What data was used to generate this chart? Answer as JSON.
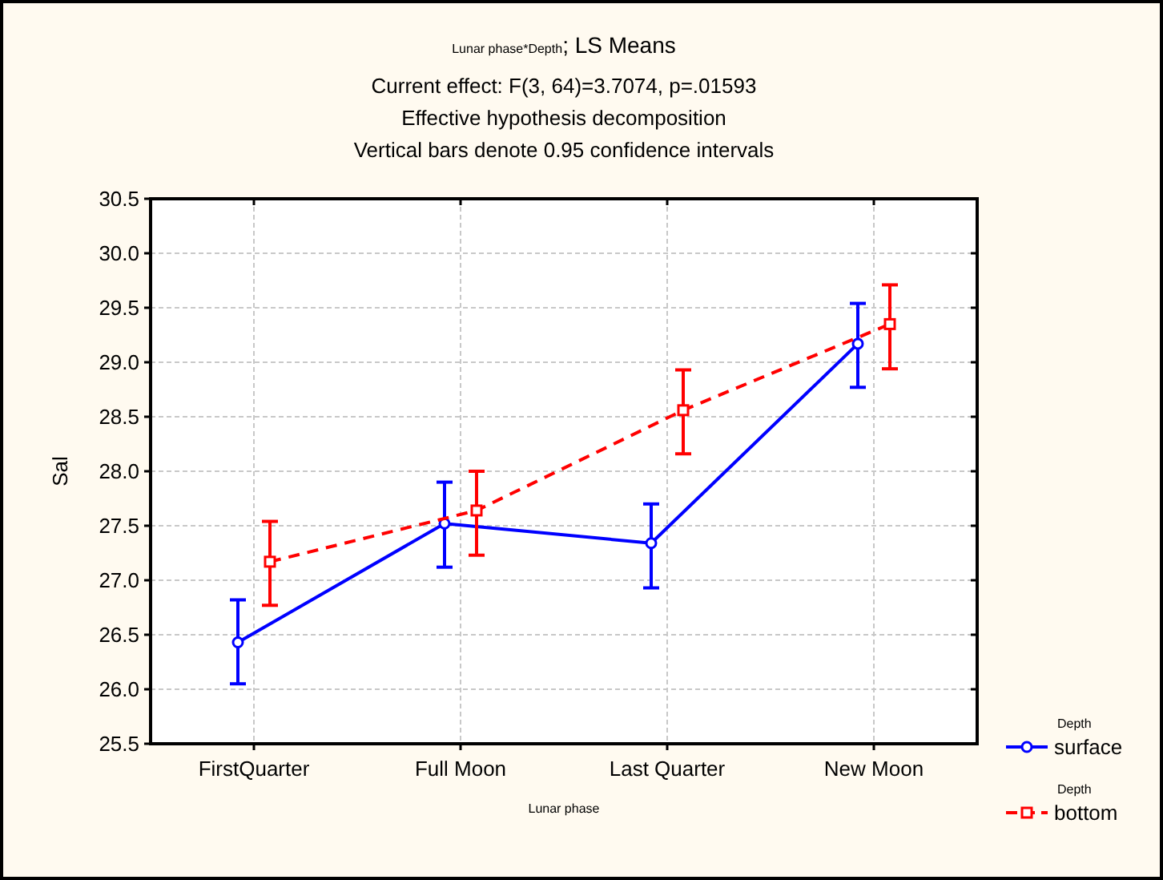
{
  "chart_data": {
    "type": "line",
    "title": "Lunar phase*Depth; LS Means",
    "subtitle": "Current effect: F(3, 64)=3.7074, p=.01593\nEffective hypothesis decomposition\nVertical bars denote 0.95 confidence intervals",
    "xlabel": "Lunar phase",
    "ylabel": "Sal",
    "legend_title": "Depth",
    "categories": [
      "FirstQuarter",
      "Full Moon",
      "Last Quarter",
      "New Moon"
    ],
    "series": [
      {
        "name": "surface",
        "color": "#0000ff",
        "marker": "circle",
        "line_style": "solid",
        "values": [
          26.43,
          27.52,
          27.34,
          29.17
        ],
        "errors": [
          [
            26.05,
            26.82
          ],
          [
            27.12,
            27.9
          ],
          [
            26.93,
            27.7
          ],
          [
            28.77,
            29.54
          ]
        ]
      },
      {
        "name": "bottom",
        "color": "#ff0000",
        "marker": "square",
        "line_style": "dashed",
        "values": [
          27.17,
          27.64,
          28.56,
          29.35
        ],
        "errors": [
          [
            26.77,
            27.54
          ],
          [
            27.23,
            28.0
          ],
          [
            28.16,
            28.93
          ],
          [
            28.94,
            29.71
          ]
        ]
      }
    ],
    "ylim": [
      25.5,
      30.5
    ],
    "yticks": [
      {
        "value": 25.5,
        "label": "25.5"
      },
      {
        "value": 26,
        "label": "26.0"
      },
      {
        "value": 26.5,
        "label": "26.5"
      },
      {
        "value": 27,
        "label": "27.0"
      },
      {
        "value": 27.5,
        "label": "27.5"
      },
      {
        "value": 28,
        "label": "28.0"
      },
      {
        "value": 28.5,
        "label": "28.5"
      },
      {
        "value": 29,
        "label": "29.0"
      },
      {
        "value": 29.5,
        "label": "29.5"
      },
      {
        "value": 30,
        "label": "30.0"
      },
      {
        "value": 30.5,
        "label": "30.5"
      }
    ],
    "grid": true,
    "legend": "bottom right"
  }
}
